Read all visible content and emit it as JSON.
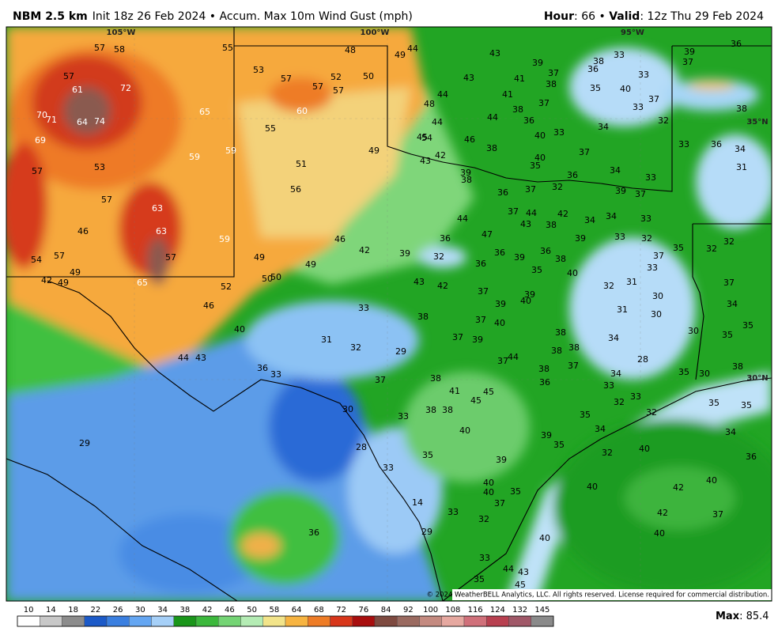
{
  "header": {
    "model": "NBM 2.5 km",
    "description": "Init 18z 26 Feb 2024 • Accum. Max 10m Wind Gust (mph)",
    "hour_label": "Hour",
    "hour_value": ": 66 • ",
    "valid_label": "Valid",
    "valid_value": ": 12z Thu 29 Feb 2024"
  },
  "graticule": {
    "lon_labels": [
      "105°W",
      "100°W",
      "95°W"
    ],
    "lat_labels": [
      "35°N",
      "30°N"
    ]
  },
  "map_labels": {
    "values": [
      57,
      58,
      55,
      48,
      49,
      44,
      43,
      39,
      37,
      38,
      33,
      39,
      37,
      36,
      57,
      53,
      57,
      57,
      52,
      50,
      57,
      43,
      41,
      36,
      38,
      35,
      40,
      33,
      61,
      72,
      48,
      44,
      41,
      37,
      38,
      33,
      37,
      38,
      70,
      71,
      64,
      74,
      65,
      60,
      44,
      44,
      36,
      32,
      33,
      34,
      69,
      55,
      45,
      54,
      46,
      38,
      40,
      37,
      33,
      36,
      34,
      59,
      59,
      49,
      42,
      43,
      40,
      35,
      39,
      36,
      34,
      33,
      31,
      57,
      53,
      51,
      38,
      36,
      37,
      32,
      39,
      37,
      56,
      57,
      63,
      37,
      44,
      42,
      44,
      43,
      38,
      34,
      34,
      33,
      63,
      46,
      47,
      36,
      33,
      32,
      32,
      59,
      46,
      39,
      35,
      32,
      42,
      39,
      32,
      36,
      39,
      36,
      38,
      37,
      54,
      57,
      57,
      49,
      49,
      36,
      35,
      40,
      33,
      49,
      42,
      49,
      65,
      50,
      50,
      43,
      42,
      32,
      31,
      52,
      37,
      39,
      30,
      37,
      46,
      33,
      39,
      40,
      31,
      30,
      34,
      38,
      37,
      40,
      40,
      31,
      32,
      37,
      39,
      38,
      34,
      30,
      35,
      35,
      29,
      38,
      38,
      44,
      43,
      36,
      33,
      37,
      44,
      38,
      37,
      28,
      35,
      30,
      38,
      34,
      37,
      38,
      36,
      33,
      41,
      45,
      45,
      33,
      32,
      30,
      33,
      38,
      38,
      35,
      35,
      35,
      32,
      40,
      34,
      34,
      39,
      29,
      28,
      35,
      32,
      40,
      35,
      39,
      36,
      33,
      40,
      40,
      40,
      42,
      40,
      35,
      37,
      14,
      33,
      32,
      42,
      37,
      36,
      29,
      40,
      40,
      33,
      44,
      43,
      35,
      45
    ]
  },
  "copyright": "© 2024 WeatherBELL Analytics, LLC. All rights reserved. License required for commercial distribution.",
  "colorbar": {
    "ticks": [
      10,
      14,
      18,
      22,
      26,
      30,
      34,
      38,
      42,
      46,
      50,
      58,
      64,
      68,
      72,
      76,
      84,
      92,
      100,
      108,
      116,
      124,
      132,
      145
    ],
    "colors": [
      "#ffffff",
      "#c8c8c8",
      "#8c8c8c",
      "#1c5ac8",
      "#3a7fe0",
      "#64a6f2",
      "#a6d0f8",
      "#1a961a",
      "#3cb83c",
      "#74d474",
      "#b4ecb4",
      "#f2e48a",
      "#f7b441",
      "#ee7c26",
      "#d8361a",
      "#a80e0e",
      "#7e4a40",
      "#9a6a60",
      "#c48a80",
      "#e6a8a0",
      "#d0707a",
      "#b84050",
      "#a05868",
      "#8a8a8a"
    ]
  },
  "max_label": "Max",
  "max_value": ": 85.4"
}
